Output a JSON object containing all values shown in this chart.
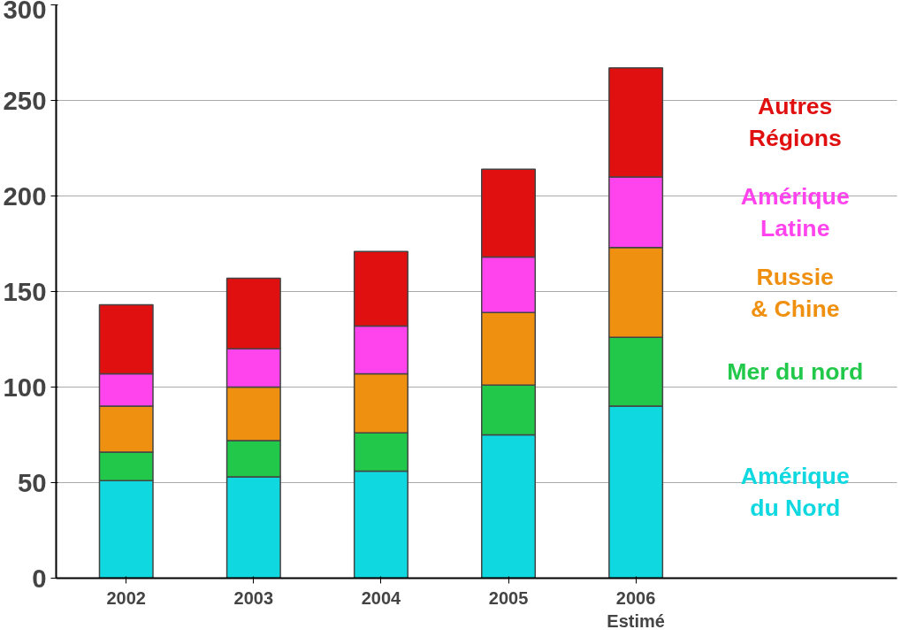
{
  "chart_data": {
    "type": "bar",
    "stacked": true,
    "categories": [
      "2002",
      "2003",
      "2004",
      "2005",
      "2006\nEstimé"
    ],
    "series": [
      {
        "name": "Amérique\ndu Nord",
        "color": "#10d8e0",
        "values": [
          51,
          53,
          56,
          75,
          90
        ]
      },
      {
        "name": "Mer du nord",
        "color": "#22c84a",
        "values": [
          15,
          19,
          20,
          26,
          36
        ]
      },
      {
        "name": "Russie\n& Chine",
        "color": "#f09010",
        "values": [
          24,
          28,
          31,
          38,
          47
        ]
      },
      {
        "name": "Amérique\nLatine",
        "color": "#ff44ee",
        "values": [
          17,
          20,
          25,
          29,
          37
        ]
      },
      {
        "name": "Autres\nRégions",
        "color": "#e01010",
        "values": [
          36,
          37,
          39,
          46,
          57
        ]
      }
    ],
    "ylim": [
      0,
      300
    ],
    "yticks": [
      0,
      50,
      100,
      150,
      200,
      250,
      300
    ],
    "grid": "y",
    "legend": "right"
  }
}
